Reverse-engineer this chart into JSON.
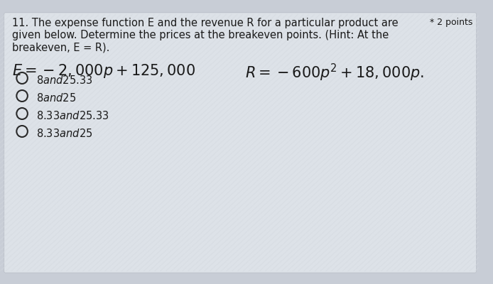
{
  "bg_top_color": "#c8cdd6",
  "card_color": "#dde2e8",
  "stripe_color": "#d0d5dc",
  "question_line1": "11. The expense function E and the revenue R for a particular product are",
  "points_text": "* 2 points",
  "question_line2": "given below. Determine the prices at the breakeven points. (Hint: At the",
  "question_line3": "breakeven, E = R).",
  "options": [
    "$8 and $25.33",
    "$8 and $25",
    "$8.33 and $25.33",
    "$8.33 and $25"
  ],
  "text_color": "#1a1a1a",
  "circle_color": "#2a2a2a",
  "font_size_question": 10.5,
  "font_size_formula": 15,
  "font_size_options": 10.5,
  "font_size_points": 9
}
